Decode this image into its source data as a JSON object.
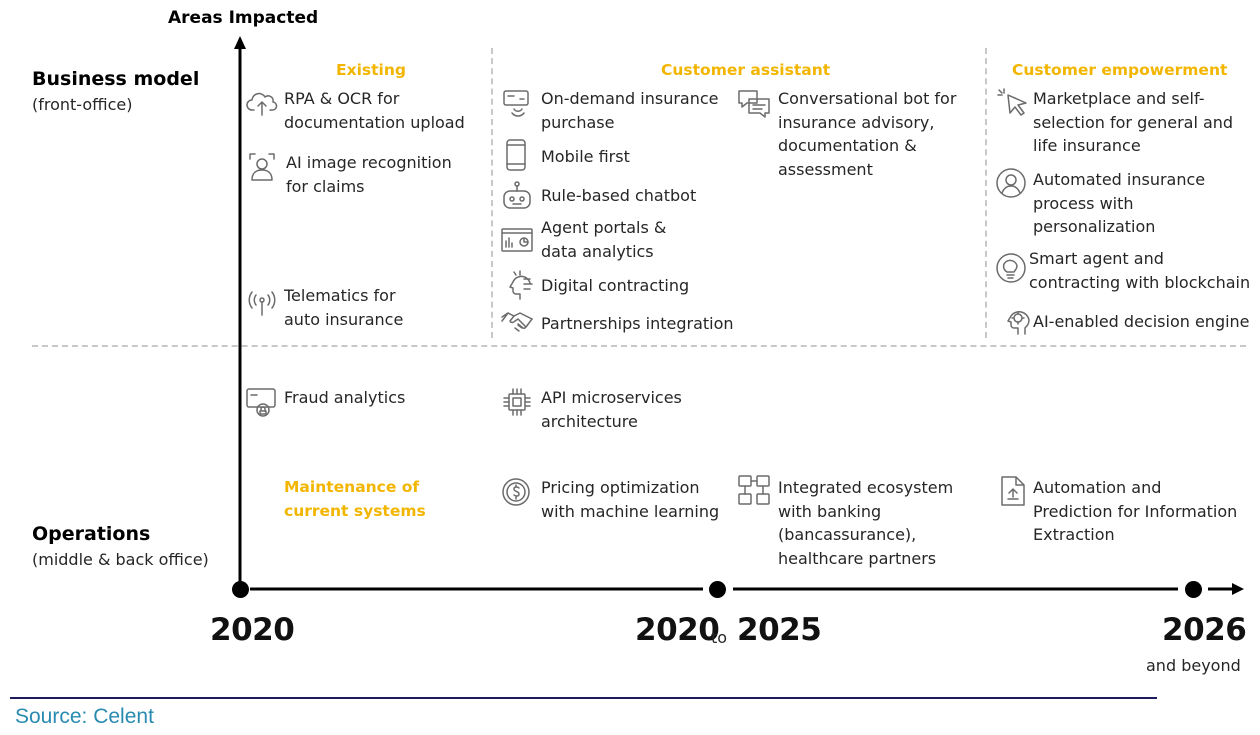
{
  "axis": {
    "y_title": "Areas Impacted",
    "top_label": "Business model",
    "top_sub": "(front-office)",
    "bottom_label": "Operations",
    "bottom_sub": "(middle & back office)"
  },
  "columns": {
    "existing": {
      "header": "Existing",
      "items": [
        {
          "line1": "RPA & OCR for",
          "line2": "documentation upload",
          "icon": "cloud-upload-icon"
        },
        {
          "line1": "AI image recognition",
          "line2": "for claims",
          "icon": "face-scan-icon"
        },
        {
          "line1": "Telematics for",
          "line2": "auto insurance",
          "icon": "antenna-icon"
        },
        {
          "line1": "Fraud analytics",
          "line2": "",
          "icon": "fraud-card-icon"
        }
      ],
      "maintenance_line1": "Maintenance of",
      "maintenance_line2": "current systems"
    },
    "assistant": {
      "header": "Customer assistant",
      "items": [
        {
          "line1": "On-demand insurance",
          "line2": "purchase",
          "icon": "touch-card-icon"
        },
        {
          "line1": "Mobile first",
          "line2": "",
          "icon": "mobile-phone-icon"
        },
        {
          "line1": "Rule-based chatbot",
          "line2": "",
          "icon": "robot-icon"
        },
        {
          "line1": "Agent portals &",
          "line2": "data analytics",
          "icon": "dashboard-icon"
        },
        {
          "line1": "Digital contracting",
          "line2": "",
          "icon": "digital-head-icon"
        },
        {
          "line1": "Partnerships integration",
          "line2": "",
          "icon": "handshake-icon"
        },
        {
          "line1": "API microservices",
          "line2": "architecture",
          "icon": "chip-icon"
        },
        {
          "line1": "Pricing optimization",
          "line2": "with machine learning",
          "icon": "dollar-coin-icon"
        }
      ],
      "bot_line1": "Conversational bot for",
      "bot_line2": "insurance advisory,",
      "bot_line3": "documentation &",
      "bot_line4": "assessment",
      "eco_line1": "Integrated ecosystem",
      "eco_line2": "with banking",
      "eco_line3": "(bancassurance),",
      "eco_line4": "healthcare partners"
    },
    "empowerment": {
      "header": "Customer empowerment",
      "items": [
        {
          "line1": "Marketplace and self-",
          "line2": "selection for general and",
          "line3": "life insurance",
          "icon": "cursor-click-icon"
        },
        {
          "line1": "Automated insurance",
          "line2": "process with",
          "line3": "personalization",
          "icon": "person-profile-icon"
        },
        {
          "line1": "Smart agent and",
          "line2": "contracting with blockchain",
          "line3": "",
          "icon": "lightbulb-icon"
        },
        {
          "line1": "AI-enabled decision engine",
          "line2": "",
          "line3": "",
          "icon": "brain-gear-icon"
        },
        {
          "line1": "Automation and",
          "line2": "Prediction for Information",
          "line3": "Extraction",
          "icon": "document-icon"
        }
      ]
    }
  },
  "timeline": {
    "start": "2020",
    "mid_from": "2020",
    "mid_to_word": "to",
    "mid_to": "2025",
    "end": "2026",
    "end_sub": "and beyond"
  },
  "source": "Source: Celent"
}
